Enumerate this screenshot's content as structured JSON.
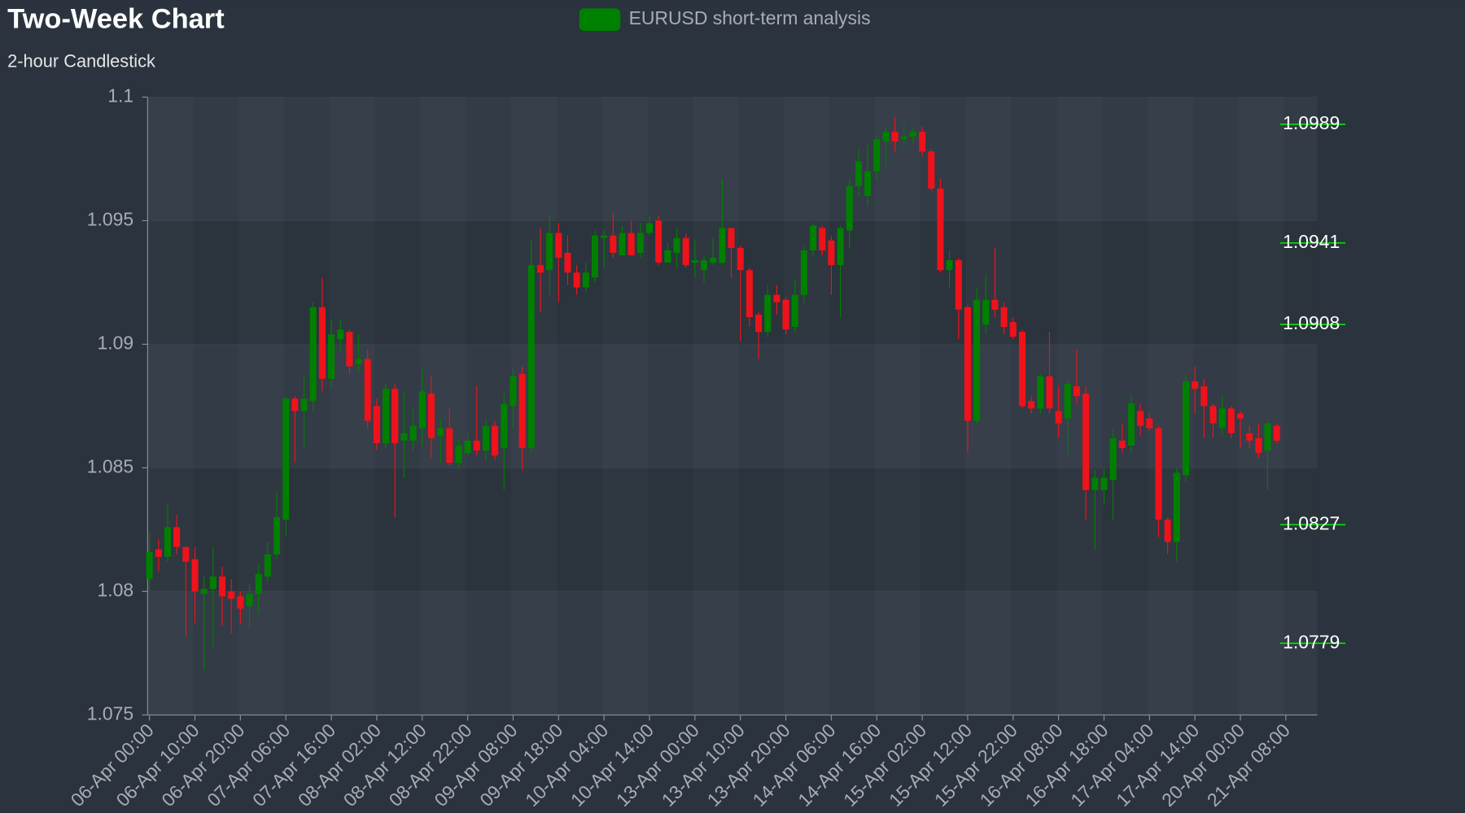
{
  "chart_data": {
    "type": "candlestick",
    "title": "Two-Week Chart",
    "subtitle": "2-hour Candlestick",
    "categories": [
      "06-Apr 00:00",
      null,
      null,
      null,
      null,
      "06-Apr 10:00",
      null,
      null,
      null,
      null,
      "06-Apr 20:00",
      null,
      null,
      null,
      null,
      "07-Apr 06:00",
      null,
      null,
      null,
      null,
      "07-Apr 16:00",
      null,
      null,
      null,
      null,
      "08-Apr 02:00",
      null,
      null,
      null,
      null,
      "08-Apr 12:00",
      null,
      null,
      null,
      null,
      "08-Apr 22:00",
      null,
      null,
      null,
      null,
      "09-Apr 08:00",
      null,
      null,
      null,
      null,
      "09-Apr 18:00",
      null,
      null,
      null,
      null,
      "10-Apr 04:00",
      null,
      null,
      null,
      null,
      "10-Apr 14:00",
      null,
      null,
      null,
      null,
      "13-Apr 00:00",
      null,
      null,
      null,
      null,
      "13-Apr 10:00",
      null,
      null,
      null,
      null,
      "13-Apr 20:00",
      null,
      null,
      null,
      null,
      "14-Apr 06:00",
      null,
      null,
      null,
      null,
      "14-Apr 16:00",
      null,
      null,
      null,
      null,
      "15-Apr 02:00",
      null,
      null,
      null,
      null,
      "15-Apr 12:00",
      null,
      null,
      null,
      null,
      "15-Apr 22:00",
      null,
      null,
      null,
      null,
      "16-Apr 08:00",
      null,
      null,
      null,
      null,
      "16-Apr 18:00",
      null,
      null,
      null,
      null,
      "17-Apr 04:00",
      null,
      null,
      null,
      null,
      "17-Apr 14:00",
      null,
      null,
      null,
      null,
      "20-Apr 00:00",
      null,
      null,
      null,
      null,
      "21-Apr 08:00"
    ],
    "series": [
      {
        "name": "EURUSD short-term analysis",
        "color": "#008000",
        "down_color": "#f0121b",
        "open": [
          1.0805,
          1.0817,
          1.0814,
          1.0826,
          1.0818,
          1.0813,
          1.0799,
          1.0801,
          1.0806,
          1.08,
          1.0798,
          1.0794,
          1.0799,
          1.0806,
          1.0815,
          1.0829,
          1.0878,
          1.0873,
          1.0877,
          1.0915,
          1.0886,
          1.0902,
          1.0905,
          1.0892,
          1.0894,
          1.0875,
          1.086,
          1.0882,
          1.0861,
          1.0861,
          1.0866,
          1.088,
          1.0863,
          1.0866,
          1.0852,
          1.0856,
          1.0861,
          1.0857,
          1.0867,
          1.0858,
          1.0875,
          1.0888,
          1.0858,
          1.0932,
          1.093,
          1.0945,
          1.0937,
          1.0929,
          1.0923,
          1.0927,
          1.0943,
          1.0944,
          1.0936,
          1.0945,
          1.0937,
          1.0945,
          1.095,
          1.0933,
          1.0937,
          1.0943,
          1.0933,
          1.093,
          1.0933,
          1.0933,
          1.0947,
          1.0939,
          1.093,
          1.0912,
          1.0905,
          1.092,
          1.0918,
          1.0907,
          1.092,
          1.0938,
          1.0947,
          1.0942,
          1.0932,
          1.0946,
          1.0964,
          1.096,
          1.097,
          1.0982,
          1.0986,
          1.0983,
          1.0984,
          1.0986,
          1.0978,
          1.0963,
          1.093,
          1.0934,
          1.0915,
          1.0869,
          1.0908,
          1.0918,
          1.0915,
          1.0909,
          1.0905,
          1.0877,
          1.0874,
          1.0887,
          1.0873,
          1.087,
          1.0883,
          1.088,
          1.0841,
          1.0841,
          1.0845,
          1.0861,
          1.0859,
          1.0873,
          1.087,
          1.0866,
          1.0829,
          1.082,
          1.0847,
          1.0885,
          1.0883,
          1.0875,
          1.0866,
          1.0874,
          1.0872,
          1.0864,
          1.0862,
          1.0857,
          1.0867,
          null
        ],
        "high": [
          1.0824,
          1.0821,
          1.0835,
          1.0831,
          1.0818,
          1.0818,
          1.0806,
          1.0818,
          1.081,
          1.0805,
          1.08,
          1.0803,
          1.0811,
          1.082,
          1.084,
          1.0879,
          1.0879,
          1.0887,
          1.0917,
          1.0927,
          1.091,
          1.091,
          1.0906,
          1.0904,
          1.0898,
          1.0878,
          1.0884,
          1.0884,
          1.0881,
          1.0874,
          1.089,
          1.0887,
          1.087,
          1.0874,
          1.0862,
          1.0864,
          1.0883,
          1.087,
          1.0869,
          1.088,
          1.089,
          1.0891,
          1.0942,
          1.0947,
          1.0952,
          1.0949,
          1.0944,
          1.0932,
          1.0933,
          1.0946,
          1.0946,
          1.0953,
          1.0948,
          1.095,
          1.0949,
          1.0952,
          1.0952,
          1.0941,
          1.0947,
          1.0945,
          1.0942,
          1.0936,
          1.0943,
          1.0967,
          1.0947,
          1.094,
          1.0931,
          1.0913,
          1.0924,
          1.0924,
          1.0919,
          1.0926,
          1.094,
          1.0949,
          1.0948,
          1.0944,
          1.0948,
          1.0967,
          1.0979,
          1.0981,
          1.0985,
          1.0988,
          1.0992,
          1.0989,
          1.0988,
          1.0988,
          1.0979,
          1.0967,
          1.0938,
          1.0935,
          1.0916,
          1.0923,
          1.0928,
          1.0939,
          1.0917,
          1.0911,
          1.0906,
          1.0879,
          1.0888,
          1.0905,
          1.0883,
          1.0886,
          1.0898,
          1.0883,
          1.0849,
          1.085,
          1.0866,
          1.0868,
          1.088,
          1.0876,
          1.0872,
          1.0867,
          1.083,
          1.085,
          1.0888,
          1.0891,
          1.0886,
          1.0876,
          1.0879,
          1.0875,
          1.0873,
          1.0867,
          1.0868,
          1.087,
          1.0868,
          null
        ],
        "low": [
          1.08,
          1.0808,
          1.0812,
          1.0815,
          1.0782,
          1.0787,
          1.0768,
          1.0777,
          1.0786,
          1.0783,
          1.0787,
          1.0785,
          1.0791,
          1.0804,
          1.0813,
          1.0822,
          1.0852,
          1.0858,
          1.0873,
          1.0881,
          1.0882,
          1.0897,
          1.0888,
          1.0889,
          1.0866,
          1.0857,
          1.0858,
          1.083,
          1.0846,
          1.0857,
          1.0859,
          1.0854,
          1.0852,
          1.0851,
          1.085,
          1.0855,
          1.0855,
          1.0853,
          1.0853,
          1.0841,
          1.0866,
          1.0849,
          1.0856,
          1.0913,
          1.092,
          1.0917,
          1.0924,
          1.092,
          1.0921,
          1.0925,
          1.0931,
          1.0935,
          1.0936,
          1.0936,
          1.0935,
          1.0944,
          1.0932,
          1.0933,
          1.0931,
          1.0931,
          1.0927,
          1.0925,
          1.0932,
          1.0932,
          1.0927,
          1.0901,
          1.0907,
          1.0894,
          1.0903,
          1.0912,
          1.0904,
          1.0905,
          1.0916,
          1.0936,
          1.0936,
          1.092,
          1.0911,
          1.0939,
          1.096,
          1.0956,
          1.0967,
          1.0972,
          1.0978,
          1.098,
          1.0981,
          1.0976,
          1.0962,
          1.0929,
          1.0923,
          1.0902,
          1.0856,
          1.0868,
          1.0904,
          1.0911,
          1.0904,
          1.0902,
          1.0874,
          1.0872,
          1.0872,
          1.0872,
          1.0862,
          1.0855,
          1.0876,
          1.0829,
          1.0817,
          1.0835,
          1.0829,
          1.0856,
          1.0856,
          1.0863,
          1.0865,
          1.0822,
          1.0815,
          1.0812,
          1.0844,
          1.0872,
          1.0862,
          1.0862,
          1.0863,
          1.0862,
          1.0858,
          1.0858,
          1.0854,
          1.0841,
          1.086,
          null
        ],
        "close": [
          1.0816,
          1.0814,
          1.0826,
          1.0818,
          1.0812,
          1.08,
          1.0801,
          1.0806,
          1.0798,
          1.0797,
          1.0793,
          1.0799,
          1.0807,
          1.0815,
          1.083,
          1.0878,
          1.0873,
          1.0878,
          1.0915,
          1.0886,
          1.0904,
          1.0906,
          1.0891,
          1.0894,
          1.0869,
          1.086,
          1.0882,
          1.086,
          1.0864,
          1.0867,
          1.0881,
          1.0862,
          1.0866,
          1.0852,
          1.0859,
          1.0861,
          1.0857,
          1.0867,
          1.0855,
          1.0876,
          1.0887,
          1.0858,
          1.0932,
          1.0929,
          1.0945,
          1.0935,
          1.0929,
          1.0923,
          1.0929,
          1.0944,
          1.0944,
          1.0937,
          1.0945,
          1.0936,
          1.0945,
          1.0949,
          1.0933,
          1.0938,
          1.0943,
          1.0932,
          1.0934,
          1.0934,
          1.0935,
          1.0947,
          1.0939,
          1.093,
          1.0911,
          1.0905,
          1.092,
          1.0917,
          1.0906,
          1.092,
          1.0938,
          1.0948,
          1.0938,
          1.0932,
          1.0947,
          1.0964,
          1.0974,
          1.097,
          1.0983,
          1.0986,
          1.0982,
          1.0984,
          1.0986,
          1.0978,
          1.0963,
          1.093,
          1.0934,
          1.0914,
          1.0869,
          1.0918,
          1.0918,
          1.0914,
          1.0907,
          1.0903,
          1.0875,
          1.0874,
          1.0887,
          1.0874,
          1.0868,
          1.0884,
          1.0879,
          1.0841,
          1.0846,
          1.0846,
          1.0862,
          1.0858,
          1.0876,
          1.0867,
          1.0866,
          1.0829,
          1.082,
          1.0848,
          1.0885,
          1.0882,
          1.0875,
          1.0868,
          1.0874,
          1.0864,
          1.087,
          1.0861,
          1.0856,
          1.0868,
          1.0861,
          null
        ]
      }
    ],
    "ylim": [
      1.075,
      1.1
    ],
    "yticks": [
      1.075,
      1.08,
      1.085,
      1.09,
      1.095,
      1.1
    ],
    "levels": [
      1.0989,
      1.0941,
      1.0908,
      1.0827,
      1.0779
    ],
    "level_color": "#00e000",
    "grid": true
  }
}
